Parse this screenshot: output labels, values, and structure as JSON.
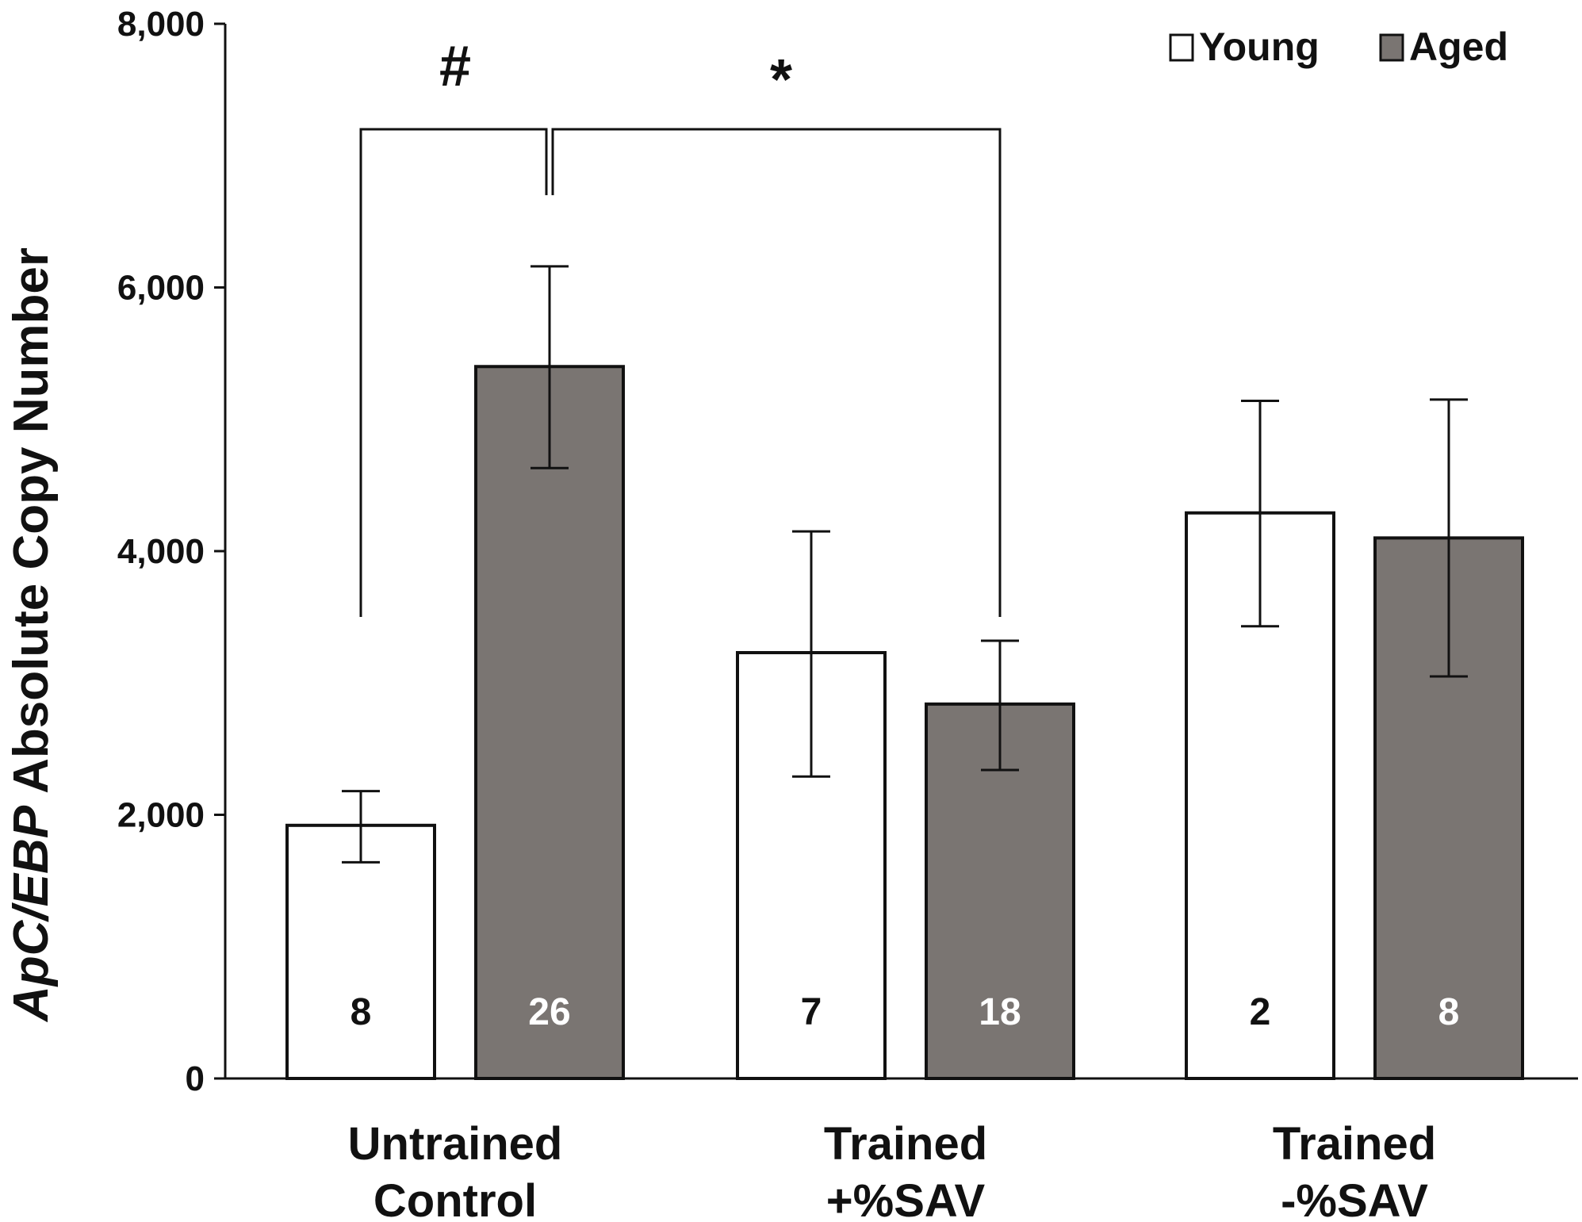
{
  "chart_data": {
    "type": "bar",
    "title": "",
    "xlabel": "",
    "ylabel_italic": "ApC/EBP",
    "ylabel_rest": " Absolute Copy Number",
    "ylim": [
      0,
      8000
    ],
    "yticks": [
      "0",
      "2,000",
      "4,000",
      "6,000",
      "8,000"
    ],
    "ytick_values": [
      0,
      2000,
      4000,
      6000,
      8000
    ],
    "categories": [
      [
        "Untrained",
        "Control"
      ],
      [
        "Trained",
        "+%SAV"
      ],
      [
        "Trained",
        "-%SAV"
      ]
    ],
    "series": [
      {
        "name": "Young",
        "color": "#ffffff",
        "text_color": "#111111",
        "values": [
          1920,
          3230,
          4290
        ],
        "err_low": [
          1640,
          2290,
          3430
        ],
        "err_high": [
          2180,
          4150,
          5140
        ],
        "n": [
          "8",
          "7",
          "2"
        ]
      },
      {
        "name": "Aged",
        "color": "#7a7572",
        "text_color": "#ffffff",
        "values": [
          5400,
          2840,
          4100
        ],
        "err_low": [
          4630,
          2340,
          3050
        ],
        "err_high": [
          6160,
          3320,
          5150
        ],
        "n": [
          "26",
          "18",
          "8"
        ]
      }
    ],
    "legend_position": "top-right",
    "annotations": [
      {
        "symbol": "#",
        "from": {
          "category": 0,
          "series": 0
        },
        "to": {
          "category": 0,
          "series": 1
        },
        "bracket_value": 7200
      },
      {
        "symbol": "*",
        "from": {
          "category": 0,
          "series": 1
        },
        "to": {
          "category": 1,
          "series": 1
        },
        "bracket_value": 7200
      }
    ]
  }
}
